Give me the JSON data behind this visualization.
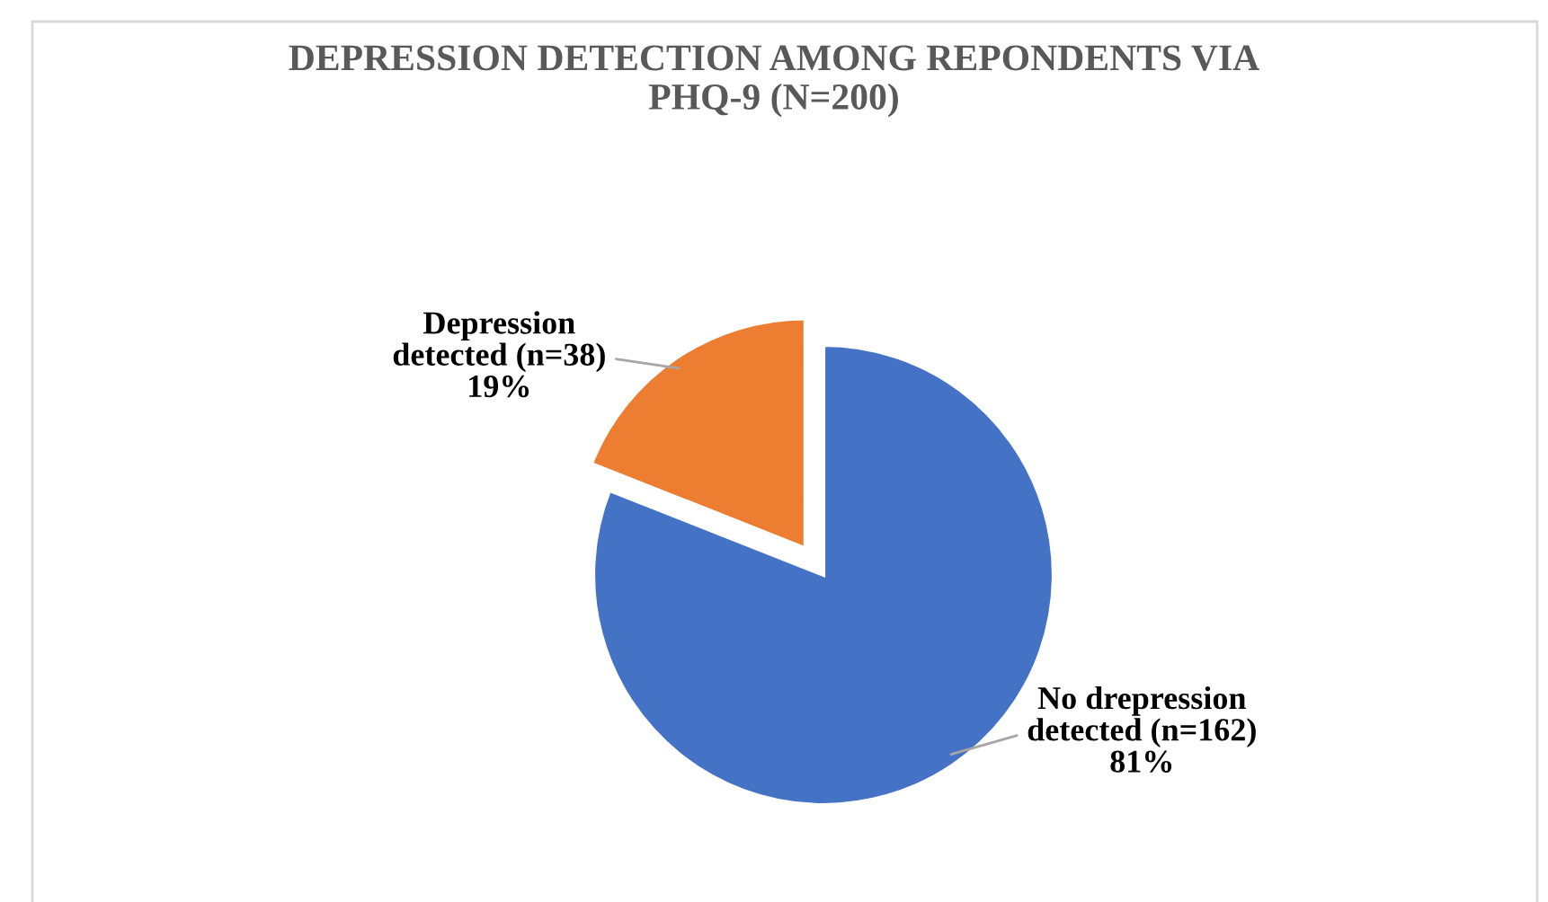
{
  "chart_data": {
    "type": "pie",
    "title": "DEPRESSION DETECTION AMONG REPONDENTS VIA\nPHQ-9 (N=200)",
    "categories": [
      "No drepression\ndetected (n=162)",
      "Depression\ndetected (n=38)"
    ],
    "values": [
      81,
      19
    ],
    "value_labels": [
      "81%",
      "19%"
    ],
    "colors": [
      "#4472c4",
      "#ed7d31"
    ],
    "legend": false
  }
}
